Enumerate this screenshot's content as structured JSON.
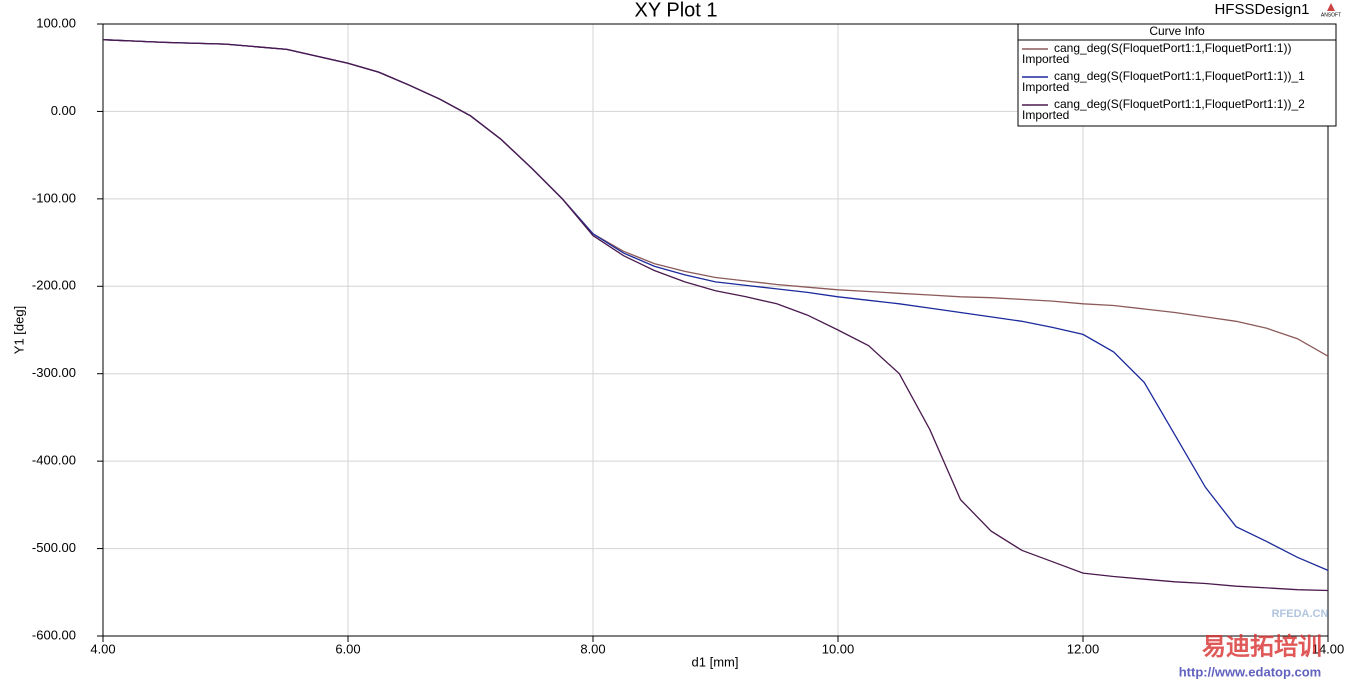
{
  "chart_data": {
    "type": "line",
    "title": "XY Plot 1",
    "design_name": "HFSSDesign1",
    "logo_text": "ANSOFT",
    "x_label": "d1 [mm]",
    "y_label": "Y1 [deg]",
    "legend_title": "Curve Info",
    "grid": true,
    "legend_position": "top-right",
    "xlim": [
      4,
      14
    ],
    "ylim": [
      -600,
      100
    ],
    "xticks": [
      {
        "value": 4,
        "label": "4.00"
      },
      {
        "value": 6,
        "label": "6.00"
      },
      {
        "value": 8,
        "label": "8.00"
      },
      {
        "value": 10,
        "label": "10.00"
      },
      {
        "value": 12,
        "label": "12.00"
      },
      {
        "value": 14,
        "label": "14.00"
      }
    ],
    "yticks": [
      {
        "value": 100,
        "label": "100.00"
      },
      {
        "value": 0,
        "label": "0.00"
      },
      {
        "value": -100,
        "label": "-100.00"
      },
      {
        "value": -200,
        "label": "-200.00"
      },
      {
        "value": -300,
        "label": "-300.00"
      },
      {
        "value": -400,
        "label": "-400.00"
      },
      {
        "value": -500,
        "label": "-500.00"
      },
      {
        "value": -600,
        "label": "-600.00"
      }
    ],
    "x": [
      4,
      4.5,
      5,
      5.5,
      6,
      6.25,
      6.5,
      6.75,
      7,
      7.25,
      7.5,
      7.75,
      8,
      8.25,
      8.5,
      8.75,
      9,
      9.25,
      9.5,
      9.75,
      10,
      10.25,
      10.5,
      10.75,
      11,
      11.25,
      11.5,
      11.75,
      12,
      12.25,
      12.5,
      12.75,
      13,
      13.25,
      13.5,
      13.75,
      14
    ],
    "series": [
      {
        "name": "cang_deg(S(FloquetPort1:1,FloquetPort1:1))",
        "source": "Imported",
        "color": "#8c5a5a",
        "values": [
          82,
          79,
          77,
          71,
          55,
          45,
          30,
          14,
          -5,
          -32,
          -65,
          -100,
          -140,
          -160,
          -174,
          -183,
          -190,
          -194,
          -198,
          -201,
          -204,
          -206,
          -208,
          -210,
          -212,
          -213,
          -215,
          -217,
          -220,
          -222,
          -226,
          -230,
          -235,
          -240,
          -248,
          -260,
          -280
        ]
      },
      {
        "name": "cang_deg(S(FloquetPort1:1,FloquetPort1:1))_1",
        "source": "Imported",
        "color": "#1c2a9c",
        "values": [
          82,
          79,
          77,
          71,
          55,
          45,
          30,
          14,
          -5,
          -32,
          -65,
          -100,
          -140,
          -162,
          -177,
          -187,
          -195,
          -199,
          -203,
          -207,
          -212,
          -216,
          -220,
          -225,
          -230,
          -235,
          -240,
          -247,
          -255,
          -275,
          -310,
          -370,
          -430,
          -475,
          -492,
          -510,
          -525
        ]
      },
      {
        "name": "cang_deg(S(FloquetPort1:1,FloquetPort1:1))_2",
        "source": "Imported",
        "color": "#4a1a4e",
        "values": [
          82,
          79,
          77,
          71,
          55,
          45,
          30,
          14,
          -5,
          -32,
          -65,
          -100,
          -142,
          -165,
          -182,
          -195,
          -205,
          -212,
          -220,
          -233,
          -250,
          -268,
          -300,
          -364,
          -444,
          -480,
          -502,
          -515,
          -528,
          -532,
          -535,
          -538,
          -540,
          -543,
          -545,
          -547,
          -548
        ]
      }
    ],
    "watermark": [
      "RFEDA.CN",
      "易迪拓培训",
      "http://www.edatop.com"
    ]
  }
}
